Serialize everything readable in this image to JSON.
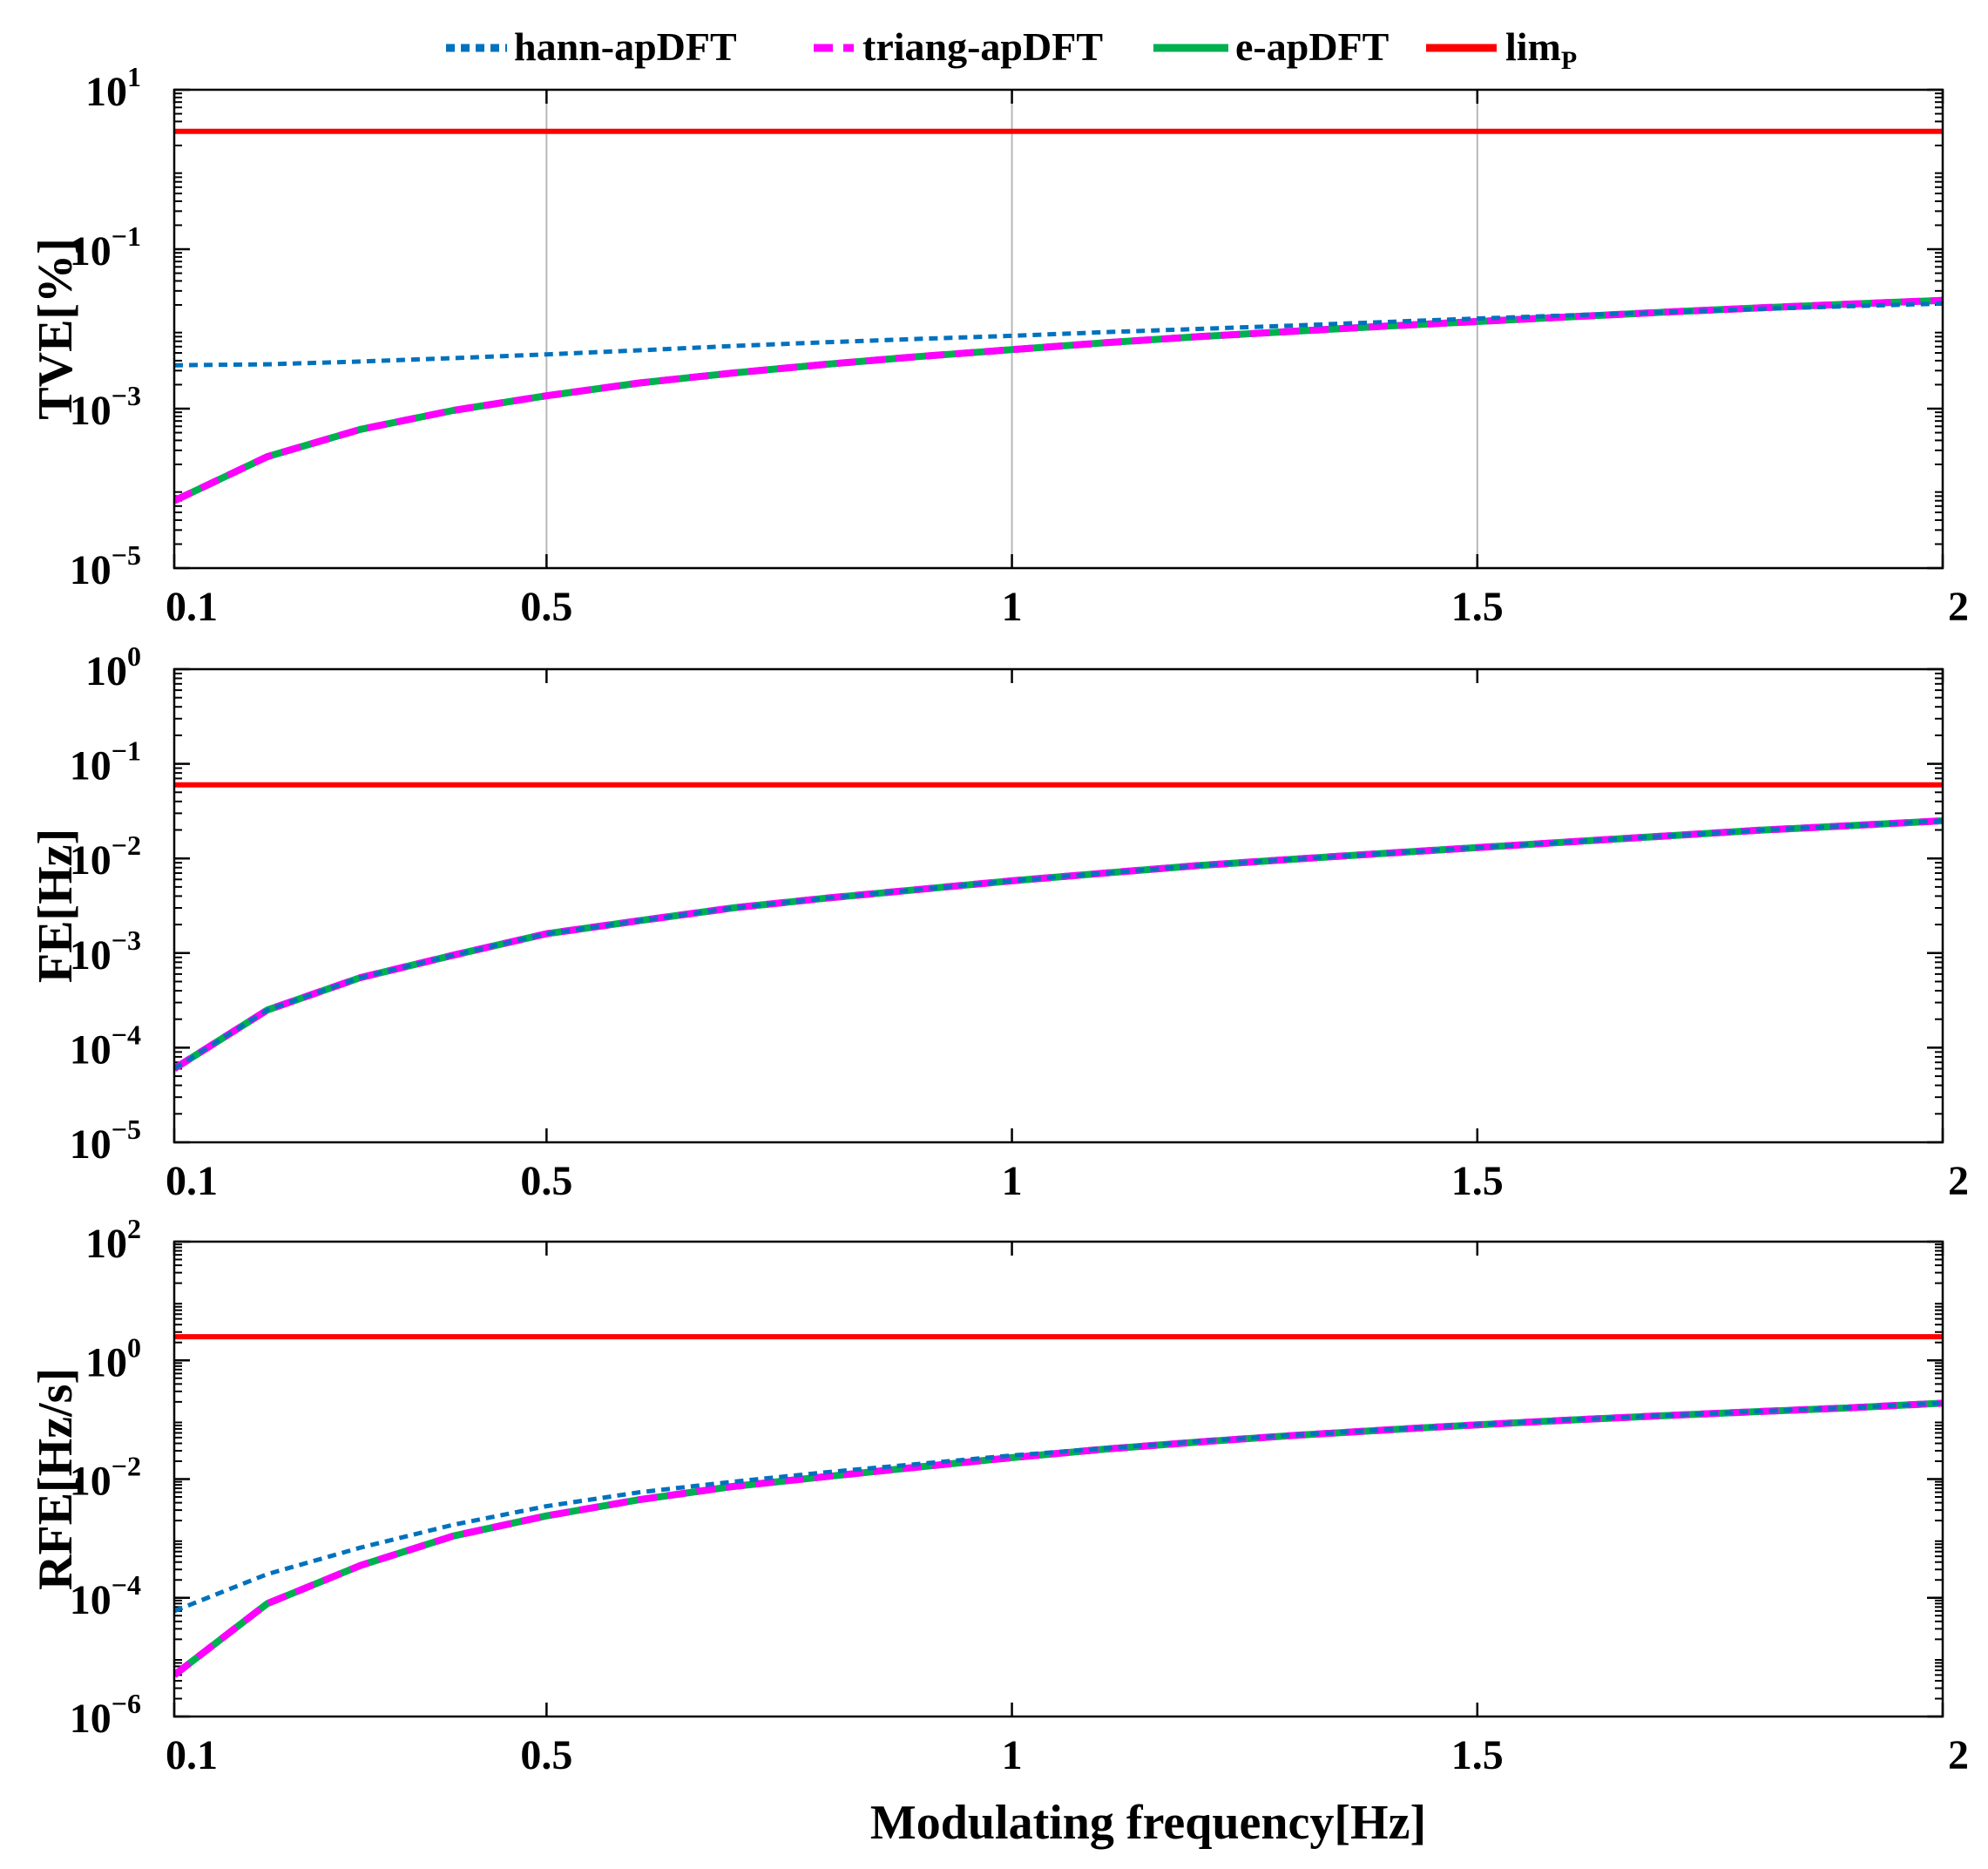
{
  "legend": [
    {
      "label": "hann-apDFT",
      "sub": "",
      "color": "#0072BD",
      "dash": "dotted"
    },
    {
      "label": "triang-apDFT",
      "sub": "",
      "color": "#FF00FF",
      "dash": "dashed"
    },
    {
      "label": "e-apDFT",
      "sub": "",
      "color": "#00B050",
      "dash": "solid"
    },
    {
      "label": "lim",
      "sub": "P",
      "color": "#FF0000",
      "dash": "solid"
    }
  ],
  "xlabel": "Modulating frequency[Hz]",
  "chart_data": [
    {
      "type": "line",
      "ylabel": "TVE[%]",
      "yscale": "log",
      "ylim_exp": [
        -5,
        1
      ],
      "ytick_exps": [
        -5,
        -3,
        -1,
        1
      ],
      "xlim": [
        0.1,
        2
      ],
      "xticks": [
        "0.1",
        "0.5",
        "1",
        "1.5",
        "2"
      ],
      "xgrid": true,
      "x": [
        0.1,
        0.2,
        0.3,
        0.4,
        0.5,
        0.6,
        0.7,
        0.8,
        0.9,
        1.0,
        1.1,
        1.2,
        1.3,
        1.4,
        1.5,
        1.6,
        1.7,
        1.8,
        1.9,
        2.0
      ],
      "series": [
        {
          "name": "hann-apDFT",
          "values": [
            0.0035,
            0.0036,
            0.0039,
            0.0043,
            0.0048,
            0.0054,
            0.0061,
            0.0068,
            0.0075,
            0.0082,
            0.0091,
            0.01,
            0.011,
            0.0122,
            0.0135,
            0.0148,
            0.0162,
            0.0178,
            0.0193,
            0.0208
          ]
        },
        {
          "name": "triang-apDFT",
          "values": [
            7e-05,
            0.00025,
            0.00055,
            0.00095,
            0.00145,
            0.0021,
            0.0028,
            0.0036,
            0.0045,
            0.0055,
            0.0067,
            0.008,
            0.0093,
            0.0108,
            0.0124,
            0.0142,
            0.0162,
            0.0183,
            0.0205,
            0.0228
          ]
        },
        {
          "name": "e-apDFT",
          "values": [
            7e-05,
            0.00025,
            0.00055,
            0.00095,
            0.00145,
            0.0021,
            0.0028,
            0.0036,
            0.0045,
            0.0055,
            0.0067,
            0.008,
            0.0093,
            0.0108,
            0.0124,
            0.0142,
            0.0162,
            0.0183,
            0.0205,
            0.0228
          ]
        },
        {
          "name": "lim",
          "values": [
            3,
            3,
            3,
            3,
            3,
            3,
            3,
            3,
            3,
            3,
            3,
            3,
            3,
            3,
            3,
            3,
            3,
            3,
            3,
            3
          ]
        }
      ]
    },
    {
      "type": "line",
      "ylabel": "FE[Hz]",
      "yscale": "log",
      "ylim_exp": [
        -5,
        0
      ],
      "ytick_exps": [
        -5,
        -4,
        -3,
        -2,
        -1,
        0
      ],
      "xlim": [
        0.1,
        2
      ],
      "xticks": [
        "0.1",
        "0.5",
        "1",
        "1.5",
        "2"
      ],
      "xgrid": false,
      "x": [
        0.1,
        0.2,
        0.3,
        0.4,
        0.5,
        0.6,
        0.7,
        0.8,
        0.9,
        1.0,
        1.1,
        1.2,
        1.3,
        1.4,
        1.5,
        1.6,
        1.7,
        1.8,
        1.9,
        2.0
      ],
      "series": [
        {
          "name": "hann-apDFT",
          "values": [
            6e-05,
            0.00025,
            0.00055,
            0.00095,
            0.0016,
            0.0022,
            0.003,
            0.0038,
            0.0047,
            0.0058,
            0.007,
            0.0084,
            0.0098,
            0.0113,
            0.013,
            0.015,
            0.0172,
            0.0198,
            0.0222,
            0.025
          ]
        },
        {
          "name": "triang-apDFT",
          "values": [
            6e-05,
            0.00025,
            0.00055,
            0.00095,
            0.0016,
            0.0022,
            0.003,
            0.0038,
            0.0047,
            0.0058,
            0.007,
            0.0084,
            0.0098,
            0.0113,
            0.013,
            0.015,
            0.0172,
            0.0198,
            0.0222,
            0.025
          ]
        },
        {
          "name": "e-apDFT",
          "values": [
            6e-05,
            0.00025,
            0.00055,
            0.00095,
            0.0016,
            0.0022,
            0.003,
            0.0038,
            0.0047,
            0.0058,
            0.007,
            0.0084,
            0.0098,
            0.0113,
            0.013,
            0.015,
            0.0172,
            0.0198,
            0.0222,
            0.025
          ]
        },
        {
          "name": "lim",
          "values": [
            0.06,
            0.06,
            0.06,
            0.06,
            0.06,
            0.06,
            0.06,
            0.06,
            0.06,
            0.06,
            0.06,
            0.06,
            0.06,
            0.06,
            0.06,
            0.06,
            0.06,
            0.06,
            0.06,
            0.06
          ]
        }
      ]
    },
    {
      "type": "line",
      "ylabel": "RFE[Hz/s]",
      "yscale": "log",
      "ylim_exp": [
        -6,
        2
      ],
      "ytick_exps": [
        -6,
        -4,
        -2,
        0,
        2
      ],
      "xlim": [
        0.1,
        2
      ],
      "xticks": [
        "0.1",
        "0.5",
        "1",
        "1.5",
        "2"
      ],
      "xgrid": false,
      "x": [
        0.1,
        0.2,
        0.3,
        0.4,
        0.5,
        0.6,
        0.7,
        0.8,
        0.9,
        1.0,
        1.1,
        1.2,
        1.3,
        1.4,
        1.5,
        1.6,
        1.7,
        1.8,
        1.9,
        2.0
      ],
      "series": [
        {
          "name": "hann-apDFT",
          "values": [
            6e-05,
            0.00025,
            0.0007,
            0.0017,
            0.0035,
            0.006,
            0.009,
            0.013,
            0.018,
            0.025,
            0.033,
            0.043,
            0.055,
            0.068,
            0.083,
            0.1,
            0.118,
            0.138,
            0.16,
            0.19
          ]
        },
        {
          "name": "triang-apDFT",
          "values": [
            5e-06,
            8e-05,
            0.00035,
            0.0011,
            0.0024,
            0.0045,
            0.0075,
            0.011,
            0.016,
            0.023,
            0.032,
            0.042,
            0.054,
            0.067,
            0.082,
            0.099,
            0.117,
            0.137,
            0.159,
            0.19
          ]
        },
        {
          "name": "e-apDFT",
          "values": [
            5e-06,
            8e-05,
            0.00035,
            0.0011,
            0.0024,
            0.0045,
            0.0075,
            0.011,
            0.016,
            0.023,
            0.032,
            0.042,
            0.054,
            0.067,
            0.082,
            0.099,
            0.117,
            0.137,
            0.159,
            0.19
          ]
        },
        {
          "name": "lim",
          "values": [
            2.5,
            2.5,
            2.5,
            2.5,
            2.5,
            2.5,
            2.5,
            2.5,
            2.5,
            2.5,
            2.5,
            2.5,
            2.5,
            2.5,
            2.5,
            2.5,
            2.5,
            2.5,
            2.5,
            2.5
          ]
        }
      ]
    }
  ]
}
